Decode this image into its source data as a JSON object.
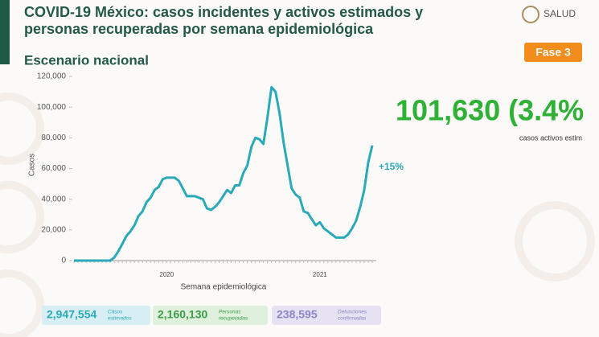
{
  "header": {
    "title_lines": [
      "COVID-19 México: casos incidentes y activos estimados y",
      "personas recuperadas por semana epidemiológica"
    ],
    "logo_text": "SALUD",
    "phase": "Fase 3"
  },
  "chart_data": {
    "type": "line",
    "subtitle": "Escenario nacional",
    "ylabel": "Casos",
    "xlabel": "Semana epidemiológica",
    "categories": [
      null,
      null,
      null,
      null,
      null,
      null,
      null,
      null,
      null,
      null,
      null,
      null,
      null,
      null,
      null,
      null,
      null,
      null,
      null,
      null,
      null,
      null,
      null,
      "2020",
      null,
      null,
      null,
      null,
      null,
      null,
      null,
      null,
      null,
      null,
      null,
      null,
      null,
      null,
      null,
      null,
      null,
      null,
      null,
      null,
      null,
      null,
      null,
      null,
      null,
      null,
      null,
      null,
      null,
      null,
      null,
      null,
      null,
      null,
      null,
      null,
      null,
      "2021",
      null,
      null,
      null,
      null,
      null,
      null,
      null,
      null,
      null,
      null,
      null,
      null,
      null
    ],
    "values": [
      0,
      0,
      0,
      0,
      0,
      0,
      0,
      0,
      0,
      0,
      2000,
      6000,
      11000,
      16000,
      19000,
      23000,
      29000,
      32000,
      38000,
      41000,
      46000,
      48000,
      53000,
      54000,
      54000,
      54000,
      52000,
      47000,
      42000,
      42000,
      42000,
      41000,
      40000,
      34000,
      33000,
      35000,
      38000,
      42000,
      46000,
      44000,
      49000,
      49000,
      57000,
      62000,
      74000,
      80000,
      79000,
      76000,
      93000,
      113000,
      110000,
      96000,
      77000,
      62000,
      47000,
      43000,
      41000,
      32000,
      31000,
      27000,
      23000,
      25000,
      21000,
      19000,
      17000,
      15000,
      15000,
      15000,
      17000,
      21000,
      26000,
      35000,
      46000,
      64000,
      75000
    ],
    "color": "#2ba9b8",
    "ylim": [
      0,
      120000
    ],
    "yticks": [
      0,
      {
        "value": 20000,
        "label": "20,000"
      },
      {
        "value": 40000,
        "label": "40,000"
      },
      {
        "value": 60000,
        "label": "60,000"
      },
      {
        "value": 80000,
        "label": "80,000"
      },
      {
        "value": 100000,
        "label": "100,000"
      },
      {
        "value": 120000,
        "label": "120,000"
      }
    ],
    "annotation": "+15%"
  },
  "highlight": {
    "value_text": "101,630 (3.4%",
    "caption": "casos activos estim"
  },
  "stats": [
    {
      "value": "2,947,554",
      "label_lines": [
        "Casos",
        "estimados"
      ]
    },
    {
      "value": "2,160,130",
      "label_lines": [
        "Personas",
        "recuperadas"
      ]
    },
    {
      "value": "238,595",
      "label_lines": [
        "Defunciones",
        "confirmadas"
      ]
    }
  ]
}
